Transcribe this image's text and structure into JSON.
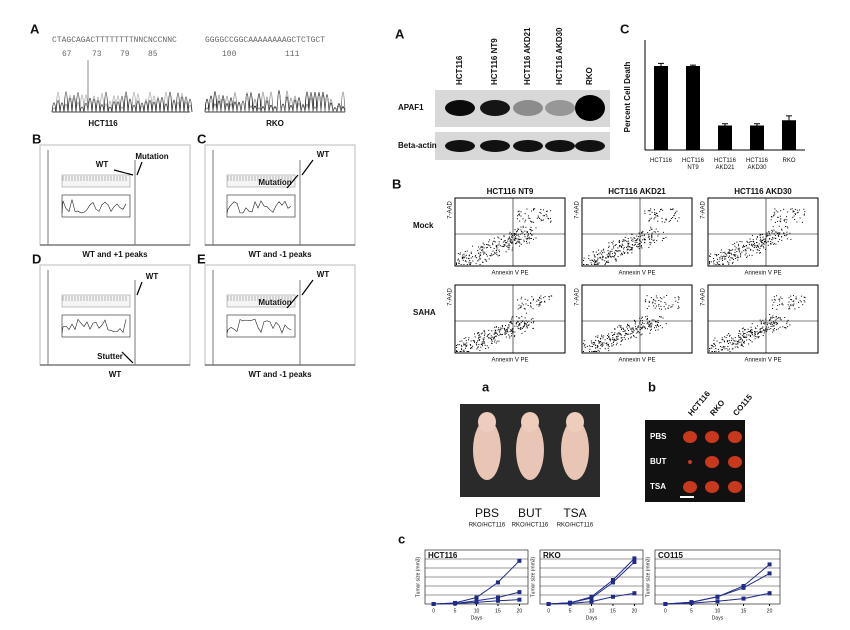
{
  "panel_left": {
    "letter": "A",
    "seq1": "CTAGCAGACTTTTTTTTNNCNCCNNC",
    "seq1_positions": [
      "67",
      "73",
      "79",
      "85"
    ],
    "seq2": "GGGGCCGGCAAAAAAAAGCTCTGCT",
    "seq2_positions": [
      "100",
      "111"
    ],
    "trace_labels": [
      "HCT116",
      "RKO"
    ],
    "peaks": [
      {
        "letter": "B",
        "arrows": [
          "WT",
          "Mutation"
        ],
        "caption": "WT and +1 peaks"
      },
      {
        "letter": "C",
        "arrows": [
          "Mutation",
          "WT"
        ],
        "caption": "WT and -1 peaks"
      },
      {
        "letter": "D",
        "arrows": [
          "WT",
          "Stutter"
        ],
        "caption": "WT"
      },
      {
        "letter": "E",
        "arrows": [
          "Mutation",
          "WT"
        ],
        "caption": "WT and -1 peaks"
      }
    ]
  },
  "western": {
    "letter": "A",
    "lanes": [
      "HCT116",
      "HCT116 NT9",
      "HCT116 AKD21",
      "HCT116 AKD30",
      "RKO"
    ],
    "rows": [
      "APAF1",
      "Beta-actin"
    ]
  },
  "flow": {
    "letter": "B",
    "columns": [
      "HCT116 NT9",
      "HCT116 AKD21",
      "HCT116 AKD30"
    ],
    "rows": [
      "Mock",
      "SAHA"
    ],
    "x_label": "Annexin V PE",
    "y_label": "7-AAD"
  },
  "xenograft": {
    "letter": "a",
    "groups": [
      "PBS",
      "BUT",
      "TSA"
    ],
    "group_sub": "RKO/HCT116"
  },
  "tumors": {
    "letter": "b",
    "columns": [
      "HCT116",
      "RKO",
      "CO115"
    ],
    "rows": [
      "PBS",
      "BUT",
      "TSA"
    ]
  },
  "growth_letter": "c",
  "chart_data": [
    {
      "type": "bar",
      "letter": "C",
      "y_label": "Percent Cell Death",
      "categories": [
        "HCT116",
        "HCT116 NT9",
        "HCT116 AKD21",
        "HCT116 AKD30",
        "RKO"
      ],
      "values": [
        48,
        48,
        14,
        14,
        17
      ],
      "errors": [
        1.5,
        0.5,
        1,
        1,
        2.5
      ],
      "ylim": [
        0,
        60
      ],
      "color": "#000000"
    },
    {
      "type": "line",
      "title": "HCT116",
      "x_label": "Days",
      "y_label": "Tumor size (mm3)",
      "x": [
        0,
        5,
        10,
        15,
        20
      ],
      "xticks": [
        0,
        5,
        10,
        15,
        20
      ],
      "xlim": [
        -2,
        22
      ],
      "ylim": [
        0,
        500
      ],
      "series": [
        {
          "color": "#1f2a8a",
          "values": [
            0,
            10,
            60,
            200,
            400
          ]
        },
        {
          "color": "#1f2a8a",
          "values": [
            0,
            5,
            30,
            60,
            110
          ]
        },
        {
          "color": "#1f2a8a",
          "values": [
            0,
            5,
            15,
            30,
            40
          ]
        }
      ]
    },
    {
      "type": "line",
      "title": "RKO",
      "x_label": "Days",
      "y_label": "Tumor size (mm3)",
      "x": [
        0,
        5,
        10,
        15,
        20
      ],
      "xticks": [
        0,
        5,
        10,
        15,
        20
      ],
      "xlim": [
        -2,
        22
      ],
      "ylim": [
        0,
        450
      ],
      "series": [
        {
          "color": "#1f2a8a",
          "values": [
            0,
            10,
            60,
            200,
            380
          ]
        },
        {
          "color": "#1f2a8a",
          "values": [
            0,
            10,
            50,
            180,
            350
          ]
        },
        {
          "color": "#1f2a8a",
          "values": [
            0,
            5,
            20,
            60,
            90
          ]
        }
      ]
    },
    {
      "type": "line",
      "title": "CO115",
      "x_label": "Days",
      "y_label": "Tumor size (mm3)",
      "x": [
        0,
        5,
        10,
        15,
        20
      ],
      "xticks": [
        0,
        5,
        10,
        15,
        20
      ],
      "xlim": [
        -2,
        22
      ],
      "ylim": [
        0,
        300
      ],
      "series": [
        {
          "color": "#1f2a8a",
          "values": [
            0,
            10,
            40,
            100,
            220
          ]
        },
        {
          "color": "#1f2a8a",
          "values": [
            0,
            10,
            40,
            90,
            170
          ]
        },
        {
          "color": "#1f2a8a",
          "values": [
            0,
            5,
            15,
            30,
            60
          ]
        }
      ]
    }
  ]
}
